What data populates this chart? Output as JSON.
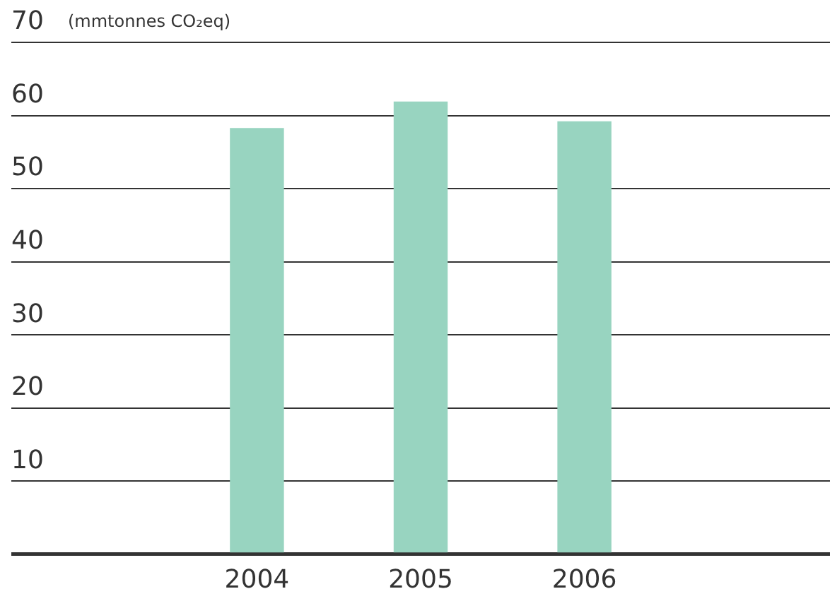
{
  "chart_data": {
    "type": "bar",
    "ylabel": "(mmtonnes CO₂eq)",
    "categories": [
      null,
      "2004",
      "2005",
      "2006",
      null
    ],
    "values": [
      null,
      58.3,
      61.9,
      59.2,
      null
    ],
    "color": "#98d4c0",
    "ylim": [
      0,
      70
    ],
    "yticks": [
      {
        "value": 0,
        "label": null
      },
      10,
      20,
      30,
      40,
      50,
      60,
      70
    ],
    "grid": "y",
    "legend": false
  }
}
